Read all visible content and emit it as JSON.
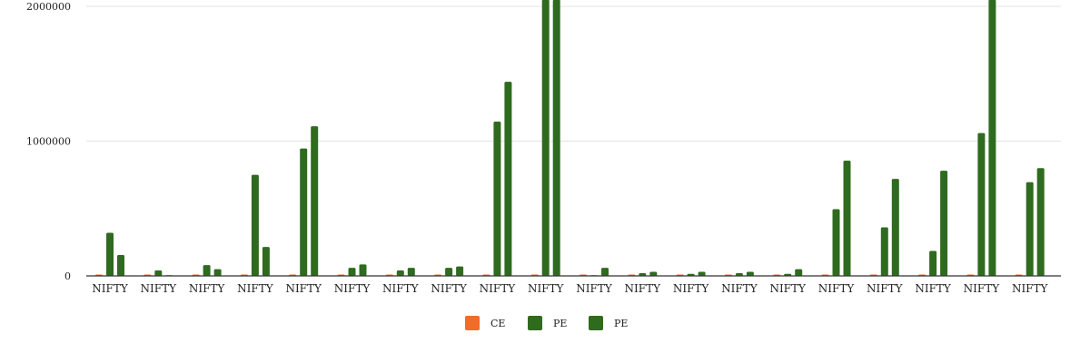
{
  "chart_data": {
    "type": "bar",
    "categories": [
      "NIFTY",
      "NIFTY",
      "NIFTY",
      "NIFTY",
      "NIFTY",
      "NIFTY",
      "NIFTY",
      "NIFTY",
      "NIFTY",
      "NIFTY",
      "NIFTY",
      "NIFTY",
      "NIFTY",
      "NIFTY",
      "NIFTY",
      "NIFTY",
      "NIFTY",
      "NIFTY",
      "NIFTY",
      "NIFTY"
    ],
    "yticks": [
      {
        "value": 0,
        "label": "0"
      },
      {
        "value": 1000000,
        "label": "1000000"
      },
      {
        "value": 2000000,
        "label": "2000000"
      }
    ],
    "ylim": [
      0,
      2000000
    ],
    "grid": true,
    "legend_position": "bottom",
    "series": [
      {
        "name": "CE",
        "color": "#f26b2a",
        "values": [
          10000,
          10000,
          10000,
          10000,
          10000,
          10000,
          10000,
          10000,
          10000,
          10000,
          10000,
          10000,
          10000,
          10000,
          10000,
          10000,
          10000,
          10000,
          10000,
          10000
        ]
      },
      {
        "name": "PE",
        "color": "#2f6b1f",
        "values": [
          320000,
          40000,
          80000,
          750000,
          945000,
          60000,
          40000,
          60000,
          1145000,
          2050000,
          5000,
          20000,
          15000,
          20000,
          15000,
          495000,
          360000,
          185000,
          1060000,
          695000
        ]
      },
      {
        "name": "PE",
        "color": "#2f6b1f",
        "values": [
          155000,
          5000,
          50000,
          215000,
          1110000,
          85000,
          60000,
          70000,
          1440000,
          2050000,
          60000,
          30000,
          30000,
          30000,
          50000,
          855000,
          720000,
          780000,
          2050000,
          800000
        ]
      }
    ]
  }
}
